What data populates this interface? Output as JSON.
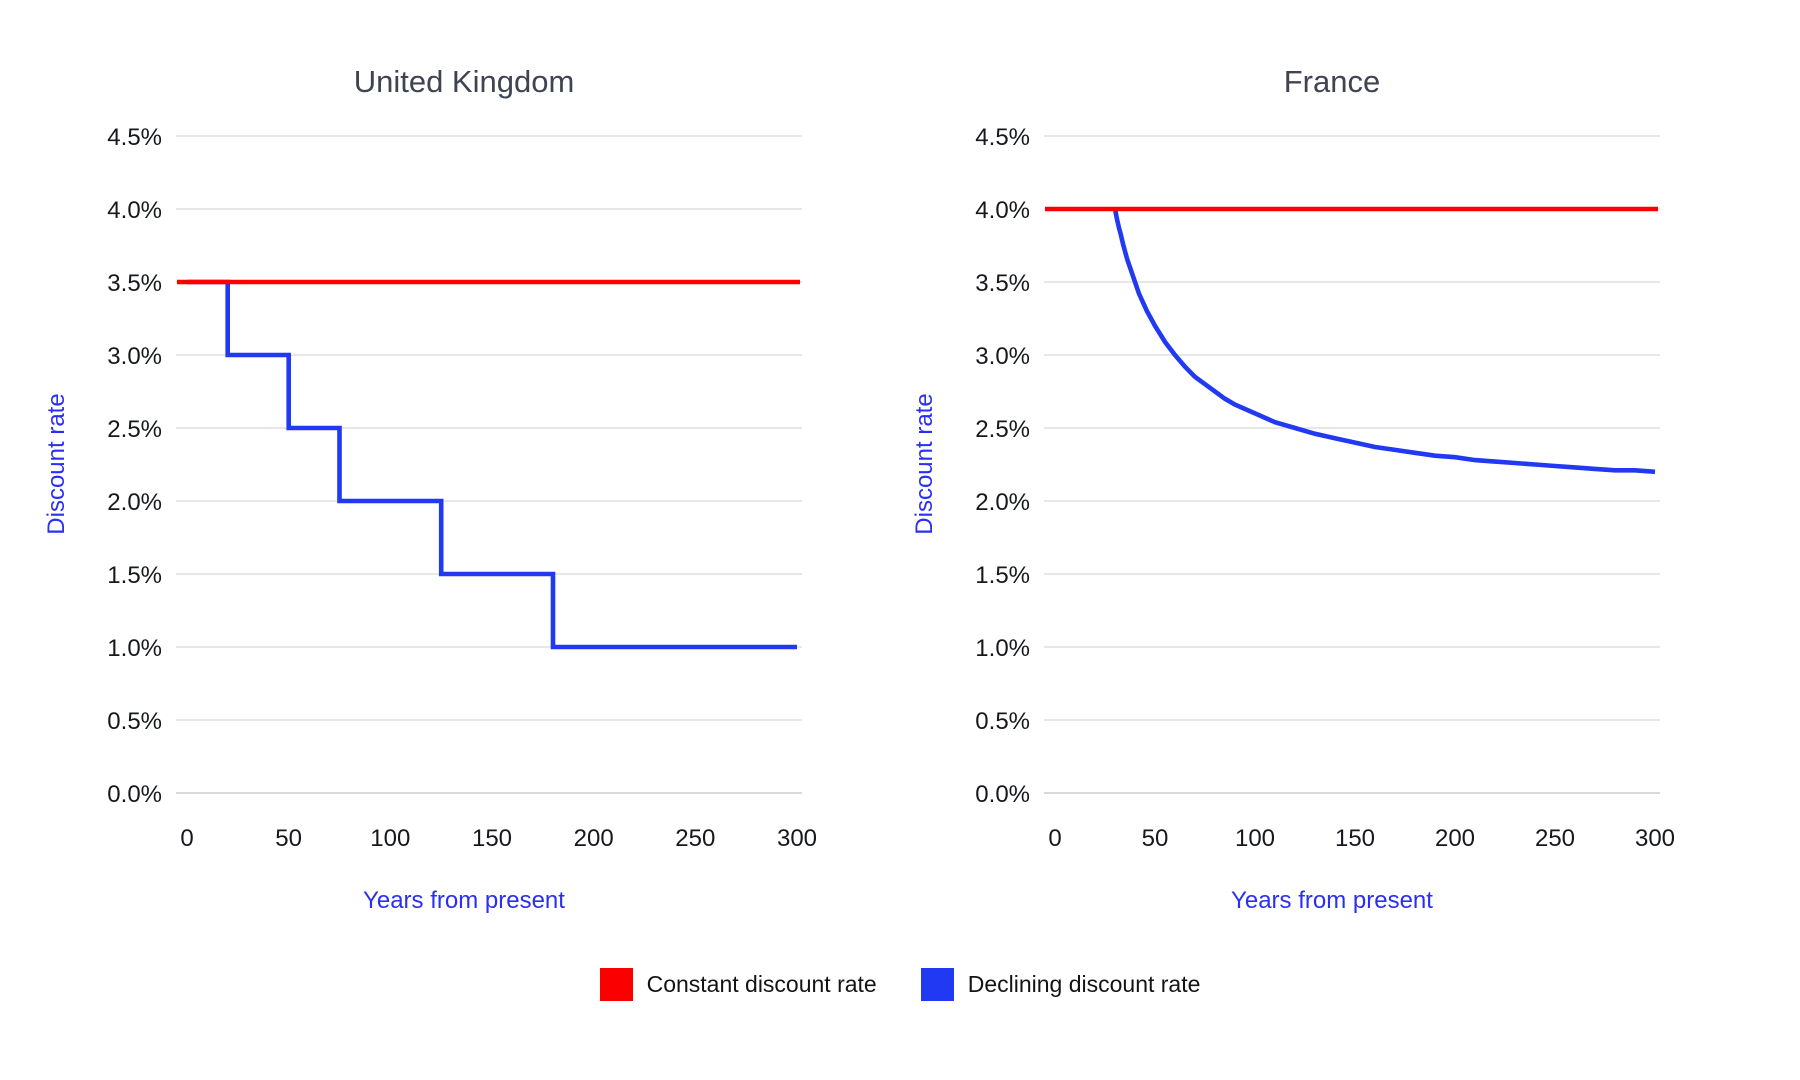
{
  "colors": {
    "constant_series": "#fb0000",
    "declining_series": "#2139f2",
    "axis_label_text": "#2a2ff2",
    "tick_text": "#16181c",
    "title_text": "#3e4450",
    "gridline": "#e7e7e7",
    "baseline": "#d9d9d9",
    "background": "#ffffff"
  },
  "legend": {
    "items": [
      {
        "label": "Constant discount rate",
        "color": "#fb0000",
        "swatch_icon": "red-square-swatch"
      },
      {
        "label": "Declining discount rate",
        "color": "#2139f2",
        "swatch_icon": "blue-square-swatch"
      }
    ]
  },
  "chart_data": [
    {
      "type": "line",
      "title": "United Kingdom",
      "xlabel": "Years from present",
      "ylabel": "Discount rate",
      "xlim": [
        0,
        300
      ],
      "ylim": [
        0,
        4.5
      ],
      "x_ticks": [
        0,
        50,
        100,
        150,
        200,
        250,
        300
      ],
      "y_ticks": [
        {
          "value": 0.0,
          "label": "0.0%"
        },
        {
          "value": 0.5,
          "label": "0.5%"
        },
        {
          "value": 1.0,
          "label": "1.0%"
        },
        {
          "value": 1.5,
          "label": "1.5%"
        },
        {
          "value": 2.0,
          "label": "2.0%"
        },
        {
          "value": 2.5,
          "label": "2.5%"
        },
        {
          "value": 3.0,
          "label": "3.0%"
        },
        {
          "value": 3.5,
          "label": "3.5%"
        },
        {
          "value": 4.0,
          "label": "4.0%"
        },
        {
          "value": 4.5,
          "label": "4.5%"
        }
      ],
      "grid": true,
      "legend_position": "bottom-shared",
      "series": [
        {
          "name": "Declining discount rate",
          "color": "#2139f2",
          "shape": "step",
          "points": [
            [
              0,
              3.5
            ],
            [
              20,
              3.5
            ],
            [
              20,
              3.0
            ],
            [
              50,
              3.0
            ],
            [
              50,
              2.5
            ],
            [
              75,
              2.5
            ],
            [
              75,
              2.0
            ],
            [
              125,
              2.0
            ],
            [
              125,
              1.5
            ],
            [
              180,
              1.5
            ],
            [
              180,
              1.0
            ],
            [
              300,
              1.0
            ]
          ]
        },
        {
          "name": "Constant discount rate",
          "color": "#fb0000",
          "shape": "constant",
          "points": [
            [
              0,
              3.5
            ],
            [
              300,
              3.5
            ]
          ]
        }
      ]
    },
    {
      "type": "line",
      "title": "France",
      "xlabel": "Years from present",
      "ylabel": "Discount rate",
      "xlim": [
        0,
        300
      ],
      "ylim": [
        0,
        4.5
      ],
      "x_ticks": [
        0,
        50,
        100,
        150,
        200,
        250,
        300
      ],
      "y_ticks": [
        {
          "value": 0.0,
          "label": "0.0%"
        },
        {
          "value": 0.5,
          "label": "0.5%"
        },
        {
          "value": 1.0,
          "label": "1.0%"
        },
        {
          "value": 1.5,
          "label": "1.5%"
        },
        {
          "value": 2.0,
          "label": "2.0%"
        },
        {
          "value": 2.5,
          "label": "2.5%"
        },
        {
          "value": 3.0,
          "label": "3.0%"
        },
        {
          "value": 3.5,
          "label": "3.5%"
        },
        {
          "value": 4.0,
          "label": "4.0%"
        },
        {
          "value": 4.5,
          "label": "4.5%"
        }
      ],
      "grid": true,
      "legend_position": "bottom-shared",
      "series": [
        {
          "name": "Declining discount rate",
          "color": "#2139f2",
          "shape": "smooth",
          "points": [
            [
              30,
              4.0
            ],
            [
              31,
              3.93
            ],
            [
              32,
              3.87
            ],
            [
              33,
              3.82
            ],
            [
              34,
              3.76
            ],
            [
              35,
              3.71
            ],
            [
              36,
              3.66
            ],
            [
              37,
              3.62
            ],
            [
              38,
              3.58
            ],
            [
              40,
              3.5
            ],
            [
              42,
              3.42
            ],
            [
              44,
              3.36
            ],
            [
              46,
              3.3
            ],
            [
              48,
              3.25
            ],
            [
              50,
              3.2
            ],
            [
              55,
              3.09
            ],
            [
              60,
              3.0
            ],
            [
              65,
              2.92
            ],
            [
              70,
              2.85
            ],
            [
              75,
              2.8
            ],
            [
              80,
              2.75
            ],
            [
              85,
              2.7
            ],
            [
              90,
              2.66
            ],
            [
              95,
              2.63
            ],
            [
              100,
              2.6
            ],
            [
              110,
              2.54
            ],
            [
              120,
              2.5
            ],
            [
              130,
              2.46
            ],
            [
              140,
              2.43
            ],
            [
              150,
              2.4
            ],
            [
              160,
              2.37
            ],
            [
              170,
              2.35
            ],
            [
              180,
              2.33
            ],
            [
              190,
              2.31
            ],
            [
              200,
              2.3
            ],
            [
              210,
              2.28
            ],
            [
              220,
              2.27
            ],
            [
              230,
              2.26
            ],
            [
              240,
              2.25
            ],
            [
              250,
              2.24
            ],
            [
              260,
              2.23
            ],
            [
              270,
              2.22
            ],
            [
              280,
              2.21
            ],
            [
              290,
              2.21
            ],
            [
              300,
              2.2
            ]
          ]
        },
        {
          "name": "Constant discount rate",
          "color": "#fb0000",
          "shape": "constant",
          "points": [
            [
              0,
              4.0
            ],
            [
              300,
              4.0
            ]
          ]
        }
      ]
    }
  ]
}
